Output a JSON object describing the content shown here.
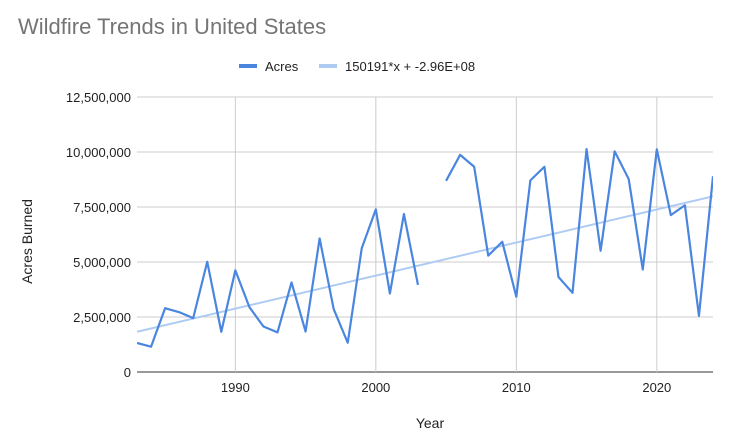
{
  "chart_data": {
    "type": "line",
    "title": "Wildfire Trends in United States",
    "xlabel": "Year",
    "ylabel": "Acres Burned",
    "xlim": [
      1983,
      2024
    ],
    "ylim": [
      0,
      12500000
    ],
    "x_ticks": [
      1990,
      2000,
      2010,
      2020
    ],
    "y_ticks": [
      0,
      2500000,
      5000000,
      7500000,
      10000000,
      12500000
    ],
    "y_tick_labels": [
      "0",
      "2,500,000",
      "5,000,000",
      "7,500,000",
      "10,000,000",
      "12,500,000"
    ],
    "grid": true,
    "legend_position": "top",
    "series": [
      {
        "name": "Acres",
        "color": "#4a86e0",
        "x": [
          1983,
          1984,
          1985,
          1986,
          1987,
          1988,
          1989,
          1990,
          1991,
          1992,
          1993,
          1994,
          1995,
          1996,
          1997,
          1998,
          1999,
          2000,
          2001,
          2002,
          2003,
          2004,
          2005,
          2006,
          2007,
          2008,
          2009,
          2010,
          2011,
          2012,
          2013,
          2014,
          2015,
          2016,
          2017,
          2018,
          2019,
          2020,
          2021,
          2022,
          2023,
          2024
        ],
        "values": [
          1320000,
          1150000,
          2900000,
          2720000,
          2450000,
          5010000,
          1830000,
          4620000,
          2950000,
          2070000,
          1800000,
          4070000,
          1840000,
          6070000,
          2860000,
          1330000,
          5630000,
          7390000,
          3570000,
          7180000,
          3960000,
          null,
          8690000,
          9870000,
          9330000,
          5290000,
          5920000,
          3420000,
          8710000,
          9330000,
          4320000,
          3600000,
          10130000,
          5510000,
          10030000,
          8770000,
          4660000,
          10120000,
          7130000,
          7580000,
          2550000,
          8900000
        ]
      },
      {
        "name": "150191*x + -2.96E+08",
        "color": "#aecbf3",
        "type": "trendline",
        "slope": 150191,
        "intercept": -296000000
      }
    ]
  }
}
